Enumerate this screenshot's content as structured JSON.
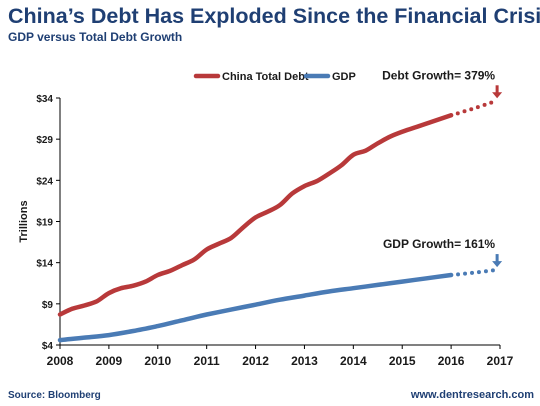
{
  "title": "China’s Debt Has Exploded Since the Financial Crisis",
  "subtitle": "GDP versus Total Debt Growth",
  "source": "Source: Bloomberg",
  "website": "www.dentresearch.com",
  "colors": {
    "debt": "#b8393a",
    "gdp": "#4a7bb5",
    "text": "#1f3f73",
    "axis": "#000000"
  },
  "chart_data": {
    "type": "line",
    "ylabel": "Trillions",
    "xlabel": "",
    "x_ticks": [
      "2008",
      "2009",
      "2010",
      "2011",
      "2012",
      "2013",
      "2014",
      "2015",
      "2016",
      "2017"
    ],
    "y_ticks": [
      "$4",
      "$9",
      "$14",
      "$19",
      "$24",
      "$29",
      "$34"
    ],
    "xlim": [
      2008,
      2017
    ],
    "ylim": [
      4,
      34
    ],
    "legend_position": "top",
    "series": [
      {
        "name": "China Total Debt",
        "color": "#b8393a",
        "points": [
          [
            2008.0,
            7.7
          ],
          [
            2008.25,
            8.4
          ],
          [
            2008.5,
            8.8
          ],
          [
            2008.75,
            9.3
          ],
          [
            2009.0,
            10.3
          ],
          [
            2009.25,
            10.9
          ],
          [
            2009.5,
            11.2
          ],
          [
            2009.75,
            11.7
          ],
          [
            2010.0,
            12.5
          ],
          [
            2010.25,
            13.0
          ],
          [
            2010.5,
            13.7
          ],
          [
            2010.75,
            14.4
          ],
          [
            2011.0,
            15.6
          ],
          [
            2011.25,
            16.3
          ],
          [
            2011.5,
            17.0
          ],
          [
            2011.75,
            18.3
          ],
          [
            2012.0,
            19.5
          ],
          [
            2012.25,
            20.2
          ],
          [
            2012.5,
            21.0
          ],
          [
            2012.75,
            22.4
          ],
          [
            2013.0,
            23.3
          ],
          [
            2013.25,
            23.9
          ],
          [
            2013.5,
            24.8
          ],
          [
            2013.75,
            25.8
          ],
          [
            2014.0,
            27.1
          ],
          [
            2014.25,
            27.6
          ],
          [
            2014.5,
            28.5
          ],
          [
            2014.75,
            29.3
          ],
          [
            2015.0,
            29.9
          ],
          [
            2015.25,
            30.4
          ],
          [
            2015.5,
            30.9
          ],
          [
            2015.75,
            31.4
          ],
          [
            2016.0,
            31.9
          ]
        ],
        "projection": [
          [
            2016.0,
            31.9
          ],
          [
            2016.5,
            32.8
          ],
          [
            2016.9,
            33.6
          ]
        ],
        "annotation": "Debt Growth= 379%"
      },
      {
        "name": "GDP",
        "color": "#4a7bb5",
        "points": [
          [
            2008.0,
            4.6
          ],
          [
            2008.5,
            4.9
          ],
          [
            2009.0,
            5.2
          ],
          [
            2009.5,
            5.7
          ],
          [
            2010.0,
            6.3
          ],
          [
            2010.5,
            7.0
          ],
          [
            2011.0,
            7.7
          ],
          [
            2011.5,
            8.3
          ],
          [
            2012.0,
            8.9
          ],
          [
            2012.5,
            9.5
          ],
          [
            2013.0,
            10.0
          ],
          [
            2013.5,
            10.5
          ],
          [
            2014.0,
            10.9
          ],
          [
            2014.5,
            11.3
          ],
          [
            2015.0,
            11.7
          ],
          [
            2015.5,
            12.1
          ],
          [
            2016.0,
            12.5
          ]
        ],
        "projection": [
          [
            2016.0,
            12.5
          ],
          [
            2016.5,
            12.8
          ],
          [
            2016.9,
            13.1
          ]
        ],
        "annotation": "GDP Growth= 161%"
      }
    ]
  }
}
